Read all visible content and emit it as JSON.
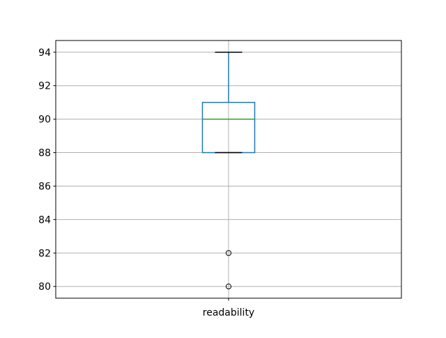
{
  "chart_data": {
    "type": "box",
    "title": "",
    "xlabel": "",
    "ylabel": "",
    "categories": [
      "readability"
    ],
    "series": [
      {
        "name": "readability",
        "whisker_high": 94,
        "q3": 91,
        "median": 90,
        "q1": 88,
        "whisker_low": 88,
        "outliers": [
          82,
          80
        ]
      }
    ],
    "ylim": [
      79.3,
      94.7
    ],
    "yticks": [
      80,
      82,
      84,
      86,
      88,
      90,
      92,
      94
    ],
    "grid": true,
    "legend": "none",
    "colors": {
      "box": "#1f77b4",
      "whisker": "#1f77b4",
      "median": "#2ca02c",
      "cap": "#000000",
      "outlier_stroke": "#000000",
      "grid": "#b0b0b0",
      "axis": "#000000",
      "background": "#ffffff"
    }
  }
}
